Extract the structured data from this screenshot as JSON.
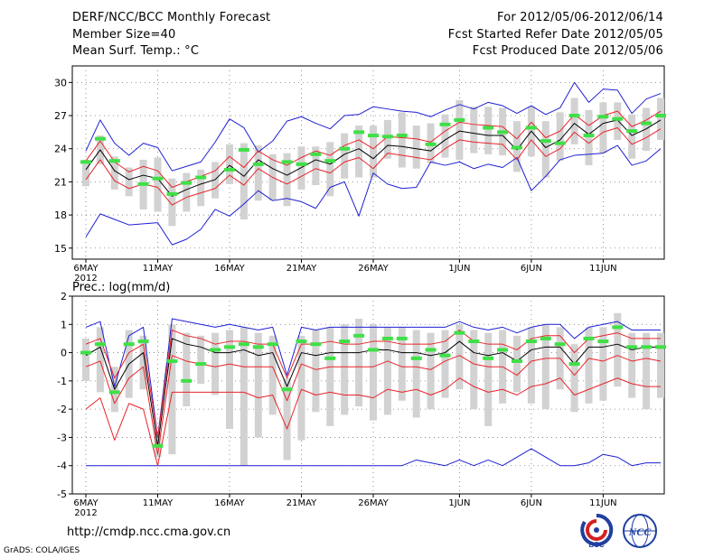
{
  "header": {
    "title": "DERF/NCC/BCC Monthly Forecast",
    "member_size": "Member Size=40",
    "variable": "Mean Surf. Temp.: °C",
    "forecast_range": "For 2012/05/06-2012/06/14",
    "started_refer": "Fcst Started Refer Date 2012/05/05",
    "produced": "Fcst Produced Date 2012/05/06"
  },
  "footer": {
    "url": "http://cmdp.ncc.cma.gov.cn",
    "grads": "GrADS: COLA/IGES",
    "logo_bcc": "BCC",
    "logo_ncc": "NCC"
  },
  "colors": {
    "median": "#000000",
    "quartile": "#e8242a",
    "extreme": "#1f1fd4",
    "box": "#d2d2d2",
    "obs": "#3fe046"
  },
  "chart_data": [
    {
      "id": "temperature",
      "type": "box-line",
      "title": "Mean Surf. Temp.: °C",
      "ylim": [
        14,
        31.5
      ],
      "yticks": [
        15,
        18,
        21,
        24,
        27,
        30
      ],
      "xticks": [
        {
          "day": 0,
          "label": "6MAY",
          "sub": "2012"
        },
        {
          "day": 5,
          "label": "11MAY"
        },
        {
          "day": 10,
          "label": "16MAY"
        },
        {
          "day": 15,
          "label": "21MAY"
        },
        {
          "day": 20,
          "label": "26MAY"
        },
        {
          "day": 26,
          "label": "1JUN"
        },
        {
          "day": 31,
          "label": "6JUN"
        },
        {
          "day": 36,
          "label": "11JUN"
        }
      ],
      "median": [
        22.1,
        23.9,
        22.0,
        21.2,
        21.6,
        21.3,
        19.7,
        20.3,
        20.8,
        21.2,
        22.5,
        21.5,
        23.0,
        22.2,
        21.6,
        22.3,
        23.0,
        22.6,
        23.5,
        24.0,
        23.1,
        24.3,
        24.2,
        24.0,
        23.8,
        24.8,
        25.6,
        25.4,
        25.2,
        25.2,
        23.9,
        25.6,
        24.1,
        24.8,
        26.3,
        25.3,
        26.3,
        26.6,
        25.2,
        25.8,
        26.6
      ],
      "upper_q": [
        22.9,
        24.7,
        22.8,
        21.9,
        22.4,
        22.0,
        20.5,
        21.0,
        21.5,
        22.0,
        23.3,
        22.3,
        23.8,
        23.0,
        22.5,
        23.2,
        23.8,
        23.4,
        24.3,
        24.8,
        24.0,
        25.1,
        25.0,
        24.9,
        24.6,
        25.6,
        26.4,
        26.2,
        26.1,
        26.0,
        24.9,
        26.4,
        25.0,
        25.6,
        27.1,
        26.1,
        27.0,
        27.4,
        26.0,
        26.6,
        27.4
      ],
      "lower_q": [
        21.2,
        23.0,
        21.1,
        20.4,
        20.8,
        20.5,
        18.9,
        19.6,
        20.0,
        20.4,
        21.6,
        20.7,
        22.2,
        21.4,
        20.8,
        21.5,
        22.2,
        21.8,
        22.8,
        23.2,
        22.2,
        23.6,
        23.4,
        23.2,
        23.0,
        24.0,
        24.8,
        24.6,
        24.5,
        24.4,
        23.0,
        24.8,
        23.3,
        24.0,
        25.5,
        24.5,
        25.5,
        25.9,
        24.4,
        25.0,
        25.8
      ],
      "max": [
        23.8,
        26.6,
        24.5,
        23.4,
        24.5,
        24.1,
        22.0,
        22.4,
        22.8,
        24.6,
        26.7,
        25.9,
        23.7,
        24.7,
        26.5,
        26.9,
        26.3,
        25.8,
        27.0,
        27.1,
        27.8,
        27.6,
        27.4,
        27.3,
        26.9,
        27.5,
        28.0,
        27.6,
        28.2,
        27.9,
        27.2,
        27.9,
        27.1,
        27.7,
        30.0,
        28.2,
        29.4,
        29.3,
        27.2,
        28.5,
        29.0
      ],
      "min": [
        16.0,
        18.1,
        17.6,
        17.1,
        17.2,
        17.3,
        15.3,
        15.8,
        16.7,
        18.5,
        17.9,
        19.0,
        20.2,
        19.3,
        19.5,
        19.2,
        18.6,
        20.5,
        21.0,
        17.9,
        21.8,
        20.8,
        20.4,
        20.5,
        22.8,
        22.5,
        22.8,
        22.2,
        22.6,
        22.3,
        23.2,
        20.2,
        21.5,
        23.0,
        23.4,
        23.5,
        23.6,
        24.3,
        22.5,
        22.9,
        24.0
      ],
      "box_top": [
        23.0,
        25.2,
        23.3,
        22.3,
        23.0,
        23.2,
        21.3,
        21.8,
        22.1,
        22.8,
        24.4,
        24.5,
        24.3,
        23.5,
        23.6,
        24.2,
        24.2,
        24.6,
        25.4,
        26.1,
        26.1,
        26.6,
        27.3,
        26.1,
        26.3,
        27.1,
        28.4,
        27.8,
        27.8,
        27.7,
        26.5,
        27.8,
        26.5,
        27.3,
        28.6,
        27.5,
        28.2,
        28.2,
        27.1,
        27.7,
        28.6
      ],
      "box_bottom": [
        20.6,
        22.6,
        20.3,
        19.7,
        18.5,
        18.3,
        17.0,
        18.3,
        18.8,
        19.5,
        20.8,
        17.6,
        19.3,
        19.3,
        18.8,
        20.3,
        20.7,
        19.7,
        21.3,
        21.4,
        21.4,
        23.1,
        22.3,
        22.2,
        22.7,
        23.2,
        23.0,
        23.6,
        23.5,
        23.4,
        21.9,
        23.3,
        21.4,
        22.9,
        24.4,
        22.5,
        23.6,
        24.8,
        23.1,
        23.8,
        24.8
      ],
      "observed": [
        22.8,
        24.9,
        22.9,
        null,
        20.8,
        21.3,
        19.9,
        20.9,
        21.4,
        null,
        22.1,
        23.9,
        22.6,
        null,
        22.8,
        22.6,
        23.5,
        22.9,
        24.0,
        25.5,
        25.2,
        25.1,
        25.2,
        null,
        24.4,
        26.2,
        26.6,
        null,
        25.9,
        25.5,
        24.1,
        25.9,
        24.7,
        24.5,
        27.0,
        25.2,
        26.9,
        26.7,
        25.6,
        26.3,
        27.0
      ]
    },
    {
      "id": "precipitation",
      "type": "box-line",
      "title": "Prec.: log(mm/d)",
      "ylim": [
        -5,
        2
      ],
      "yticks": [
        -5,
        -4,
        -3,
        -2,
        -1,
        0,
        1,
        2
      ],
      "xticks": [
        {
          "day": 0,
          "label": "6MAY",
          "sub": "2012"
        },
        {
          "day": 5,
          "label": "11MAY"
        },
        {
          "day": 10,
          "label": "16MAY"
        },
        {
          "day": 15,
          "label": "21MAY"
        },
        {
          "day": 20,
          "label": "26MAY"
        },
        {
          "day": 26,
          "label": "1JUN"
        },
        {
          "day": 31,
          "label": "6JUN"
        },
        {
          "day": 36,
          "label": "11JUN"
        }
      ],
      "median": [
        -0.1,
        0.2,
        -1.3,
        -0.4,
        0.0,
        -3.3,
        0.5,
        0.3,
        0.2,
        0.0,
        0.0,
        0.1,
        -0.1,
        0.0,
        -1.2,
        0.0,
        -0.1,
        0.0,
        0.0,
        0.0,
        0.1,
        0.1,
        0.0,
        0.0,
        -0.1,
        0.0,
        0.4,
        0.0,
        -0.1,
        0.0,
        -0.3,
        0.1,
        0.2,
        0.2,
        -0.4,
        0.2,
        0.2,
        0.3,
        0.1,
        0.2,
        0.2
      ],
      "upper_q": [
        0.3,
        0.5,
        -0.9,
        0.0,
        0.3,
        -3.0,
        0.8,
        0.6,
        0.5,
        0.3,
        0.4,
        0.4,
        0.3,
        0.3,
        -0.9,
        0.3,
        0.3,
        0.4,
        0.3,
        0.3,
        0.4,
        0.4,
        0.3,
        0.3,
        0.3,
        0.4,
        0.8,
        0.4,
        0.3,
        0.3,
        0.1,
        0.5,
        0.6,
        0.6,
        0.0,
        0.5,
        0.6,
        0.7,
        0.5,
        0.5,
        0.5
      ],
      "lower_q": [
        -0.5,
        -0.3,
        -1.8,
        -0.9,
        -0.5,
        -3.6,
        -0.1,
        -0.3,
        -0.4,
        -0.5,
        -0.4,
        -0.5,
        -0.5,
        -0.5,
        -1.7,
        -0.4,
        -0.6,
        -0.5,
        -0.5,
        -0.5,
        -0.5,
        -0.3,
        -0.5,
        -0.5,
        -0.6,
        -0.3,
        -0.1,
        -0.4,
        -0.5,
        -0.5,
        -0.8,
        -0.3,
        -0.2,
        -0.2,
        -0.8,
        -0.2,
        -0.3,
        -0.1,
        -0.3,
        -0.2,
        -0.3
      ],
      "q10": [
        -2.0,
        -1.6,
        -3.1,
        -1.8,
        -2.0,
        -4.0,
        -1.4,
        -1.4,
        -1.4,
        -1.4,
        -1.4,
        -1.4,
        -1.6,
        -1.5,
        -2.7,
        -1.3,
        -1.5,
        -1.4,
        -1.5,
        -1.5,
        -1.6,
        -1.3,
        -1.4,
        -1.3,
        -1.5,
        -1.3,
        -0.9,
        -1.2,
        -1.4,
        -1.3,
        -1.5,
        -1.2,
        -1.1,
        -0.9,
        -1.5,
        -1.3,
        -1.1,
        -0.9,
        -1.1,
        -1.2,
        -1.2
      ],
      "max": [
        0.9,
        1.1,
        -1.2,
        0.6,
        0.9,
        -3.0,
        1.2,
        1.1,
        1.0,
        0.9,
        1.0,
        0.9,
        0.8,
        0.9,
        -0.8,
        0.9,
        0.8,
        0.9,
        0.9,
        0.9,
        0.9,
        0.9,
        0.9,
        0.9,
        0.9,
        0.9,
        1.1,
        0.9,
        0.8,
        0.9,
        0.7,
        0.9,
        1.0,
        1.0,
        0.5,
        0.9,
        1.0,
        1.1,
        0.8,
        0.8,
        0.8
      ],
      "min": [
        -4.0,
        -4.0,
        -4.0,
        -4.0,
        -4.0,
        -4.0,
        -4.0,
        -4.0,
        -4.0,
        -4.0,
        -4.0,
        -4.0,
        -4.0,
        -4.0,
        -4.0,
        -4.0,
        -4.0,
        -4.0,
        -4.0,
        -4.0,
        -4.0,
        -4.0,
        -4.0,
        -3.8,
        -3.9,
        -4.0,
        -3.8,
        -4.0,
        -3.8,
        -4.0,
        -3.7,
        -3.4,
        -3.7,
        -4.0,
        -4.0,
        -3.9,
        -3.6,
        -3.7,
        -4.0,
        -3.9,
        -3.9
      ],
      "box_top": [
        0.5,
        0.9,
        -0.5,
        0.8,
        0.6,
        -2.8,
        1.0,
        0.7,
        0.6,
        0.7,
        0.8,
        0.9,
        0.7,
        0.6,
        -0.9,
        0.6,
        0.8,
        0.9,
        1.0,
        1.2,
        1.0,
        0.9,
        0.9,
        0.8,
        0.7,
        0.8,
        1.0,
        0.8,
        0.7,
        0.8,
        0.6,
        0.9,
        1.0,
        0.9,
        0.3,
        0.9,
        0.9,
        1.4,
        0.7,
        0.7,
        0.7
      ],
      "box_bottom": [
        -1.0,
        -1.4,
        -2.1,
        -1.6,
        -1.3,
        -3.7,
        -3.6,
        -1.9,
        -1.1,
        -1.5,
        -2.7,
        -4.0,
        -3.0,
        -2.2,
        -3.8,
        -3.1,
        -2.1,
        -2.6,
        -2.2,
        -1.9,
        -2.4,
        -2.2,
        -1.7,
        -2.3,
        -2.0,
        -1.6,
        -1.3,
        -2.0,
        -2.6,
        -1.8,
        -1.4,
        -1.8,
        -2.0,
        -1.3,
        -2.1,
        -1.8,
        -1.7,
        -1.2,
        -1.6,
        -2.0,
        -1.6
      ],
      "observed": [
        0.0,
        0.3,
        -1.4,
        0.3,
        0.4,
        -3.3,
        -0.3,
        -1.0,
        -0.4,
        0.1,
        0.2,
        0.3,
        0.2,
        0.3,
        -1.3,
        0.4,
        0.3,
        -0.2,
        0.4,
        0.6,
        0.1,
        0.5,
        0.5,
        -0.2,
        0.1,
        -0.1,
        0.7,
        0.4,
        -0.2,
        0.1,
        -0.3,
        0.4,
        0.5,
        0.3,
        -0.4,
        0.5,
        0.4,
        0.9,
        0.2,
        0.2,
        0.2
      ]
    }
  ]
}
